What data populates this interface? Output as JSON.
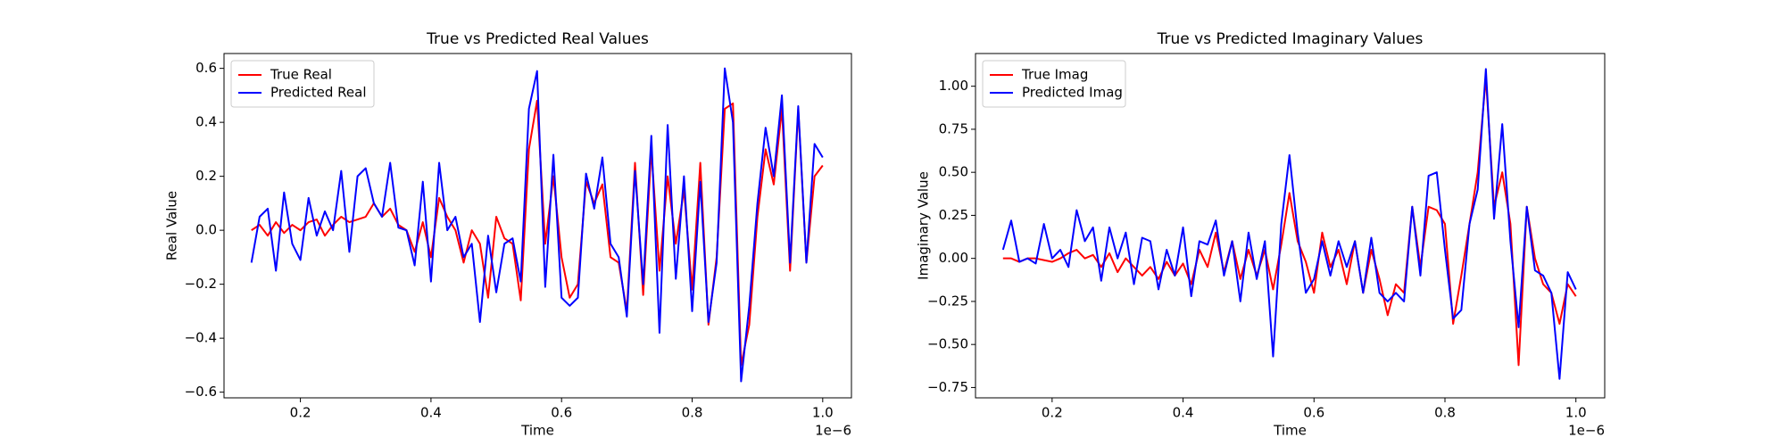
{
  "chart_data": [
    {
      "type": "line",
      "title": "True vs Predicted Real Values",
      "xlabel": "Time",
      "ylabel": "Real Value",
      "x_offset_label": "1e−6",
      "x": [
        0.125,
        0.1375,
        0.15,
        0.1625,
        0.175,
        0.1875,
        0.2,
        0.2125,
        0.225,
        0.2375,
        0.25,
        0.2625,
        0.275,
        0.2875,
        0.3,
        0.3125,
        0.325,
        0.3375,
        0.35,
        0.3625,
        0.375,
        0.3875,
        0.4,
        0.4125,
        0.425,
        0.4375,
        0.45,
        0.4625,
        0.475,
        0.4875,
        0.5,
        0.5125,
        0.525,
        0.5375,
        0.55,
        0.5625,
        0.575,
        0.5875,
        0.6,
        0.6125,
        0.625,
        0.6375,
        0.65,
        0.6625,
        0.675,
        0.6875,
        0.7,
        0.7125,
        0.725,
        0.7375,
        0.75,
        0.7625,
        0.775,
        0.7875,
        0.8,
        0.8125,
        0.825,
        0.8375,
        0.85,
        0.8625,
        0.875,
        0.8875,
        0.9,
        0.9125,
        0.925,
        0.9375,
        0.95,
        0.9625,
        0.975,
        0.9875,
        1.0
      ],
      "series": [
        {
          "name": "True Real",
          "color": "#ff0000",
          "values": [
            0.0,
            0.02,
            -0.02,
            0.03,
            -0.01,
            0.02,
            0.0,
            0.03,
            0.04,
            -0.02,
            0.02,
            0.05,
            0.03,
            0.04,
            0.05,
            0.1,
            0.05,
            0.08,
            0.02,
            0.0,
            -0.08,
            0.03,
            -0.1,
            0.12,
            0.05,
            0.0,
            -0.12,
            0.0,
            -0.05,
            -0.25,
            0.05,
            -0.03,
            -0.05,
            -0.26,
            0.3,
            0.48,
            -0.05,
            0.2,
            -0.1,
            -0.25,
            -0.2,
            0.18,
            0.1,
            0.17,
            -0.1,
            -0.12,
            -0.3,
            0.25,
            -0.24,
            0.3,
            -0.15,
            0.2,
            -0.05,
            0.15,
            -0.22,
            0.25,
            -0.35,
            -0.1,
            0.45,
            0.47,
            -0.5,
            -0.35,
            0.05,
            0.3,
            0.17,
            0.45,
            -0.15,
            0.45,
            -0.12,
            0.2,
            0.24
          ]
        },
        {
          "name": "Predicted Real",
          "color": "#0000ff",
          "values": [
            -0.12,
            0.05,
            0.08,
            -0.15,
            0.14,
            -0.05,
            -0.11,
            0.12,
            -0.02,
            0.07,
            0.0,
            0.22,
            -0.08,
            0.2,
            0.23,
            0.1,
            0.05,
            0.25,
            0.01,
            0.0,
            -0.13,
            0.18,
            -0.19,
            0.25,
            0.0,
            0.05,
            -0.1,
            -0.05,
            -0.34,
            -0.02,
            -0.23,
            -0.05,
            -0.03,
            -0.19,
            0.45,
            0.59,
            -0.21,
            0.28,
            -0.25,
            -0.28,
            -0.25,
            0.21,
            0.08,
            0.27,
            -0.05,
            -0.1,
            -0.32,
            0.22,
            -0.2,
            0.35,
            -0.38,
            0.39,
            -0.18,
            0.2,
            -0.3,
            0.18,
            -0.34,
            -0.12,
            0.6,
            0.4,
            -0.56,
            -0.28,
            0.1,
            0.38,
            0.2,
            0.5,
            -0.12,
            0.46,
            -0.12,
            0.32,
            0.27
          ]
        }
      ],
      "xlim": [
        0.083,
        1.044
      ],
      "ylim": [
        -0.621,
        0.655
      ],
      "xticks": [
        0.2,
        0.4,
        0.6,
        0.8,
        {
          "value": 1.0,
          "label": "1.0"
        }
      ],
      "yticks": [
        {
          "value": -0.6,
          "label": "−0.6"
        },
        {
          "value": -0.4,
          "label": "−0.4"
        },
        {
          "value": -0.2,
          "label": "−0.2"
        },
        {
          "value": 0.0,
          "label": "0.0"
        },
        0.2,
        0.4,
        0.6
      ],
      "legend": "upper left",
      "grid": false
    },
    {
      "type": "line",
      "title": "True vs Predicted Imaginary Values",
      "xlabel": "Time",
      "ylabel": "Imaginary Value",
      "x_offset_label": "1e−6",
      "x": [
        0.125,
        0.1375,
        0.15,
        0.1625,
        0.175,
        0.1875,
        0.2,
        0.2125,
        0.225,
        0.2375,
        0.25,
        0.2625,
        0.275,
        0.2875,
        0.3,
        0.3125,
        0.325,
        0.3375,
        0.35,
        0.3625,
        0.375,
        0.3875,
        0.4,
        0.4125,
        0.425,
        0.4375,
        0.45,
        0.4625,
        0.475,
        0.4875,
        0.5,
        0.5125,
        0.525,
        0.5375,
        0.55,
        0.5625,
        0.575,
        0.5875,
        0.6,
        0.6125,
        0.625,
        0.6375,
        0.65,
        0.6625,
        0.675,
        0.6875,
        0.7,
        0.7125,
        0.725,
        0.7375,
        0.75,
        0.7625,
        0.775,
        0.7875,
        0.8,
        0.8125,
        0.825,
        0.8375,
        0.85,
        0.8625,
        0.875,
        0.8875,
        0.9,
        0.9125,
        0.925,
        0.9375,
        0.95,
        0.9625,
        0.975,
        0.9875,
        1.0
      ],
      "series": [
        {
          "name": "True Imag",
          "color": "#ff0000",
          "values": [
            0.0,
            0.0,
            -0.02,
            0.0,
            0.0,
            -0.01,
            -0.02,
            0.0,
            0.03,
            0.05,
            0.0,
            0.02,
            -0.05,
            0.03,
            -0.08,
            0.0,
            -0.05,
            -0.1,
            -0.05,
            -0.12,
            -0.02,
            -0.1,
            -0.03,
            -0.15,
            0.05,
            -0.05,
            0.15,
            -0.08,
            0.1,
            -0.12,
            0.05,
            -0.1,
            0.05,
            -0.18,
            0.08,
            0.38,
            0.1,
            -0.02,
            -0.2,
            0.15,
            -0.05,
            0.05,
            -0.15,
            0.1,
            -0.2,
            0.05,
            -0.12,
            -0.33,
            -0.15,
            -0.2,
            0.3,
            -0.05,
            0.3,
            0.28,
            0.2,
            -0.38,
            -0.1,
            0.2,
            0.5,
            1.05,
            0.3,
            0.5,
            0.2,
            -0.62,
            0.3,
            0.0,
            -0.15,
            -0.2,
            -0.38,
            -0.15,
            -0.22
          ]
        },
        {
          "name": "Predicted Imag",
          "color": "#0000ff",
          "values": [
            0.05,
            0.22,
            -0.02,
            0.0,
            -0.03,
            0.2,
            0.0,
            0.05,
            -0.05,
            0.28,
            0.1,
            0.18,
            -0.13,
            0.18,
            0.0,
            0.15,
            -0.15,
            0.12,
            0.1,
            -0.18,
            0.05,
            -0.1,
            0.18,
            -0.22,
            0.1,
            0.08,
            0.22,
            -0.1,
            0.1,
            -0.25,
            0.15,
            -0.12,
            0.1,
            -0.57,
            0.2,
            0.6,
            0.15,
            -0.2,
            -0.12,
            0.1,
            -0.1,
            0.1,
            -0.05,
            0.1,
            -0.2,
            0.12,
            -0.2,
            -0.25,
            -0.2,
            -0.25,
            0.3,
            -0.1,
            0.48,
            0.5,
            0.05,
            -0.35,
            -0.3,
            0.2,
            0.4,
            1.1,
            0.23,
            0.78,
            0.1,
            -0.4,
            0.3,
            -0.07,
            -0.1,
            -0.2,
            -0.7,
            -0.08,
            -0.18
          ]
        }
      ],
      "xlim": [
        0.083,
        1.044
      ],
      "ylim": [
        -0.81,
        1.19
      ],
      "xticks": [
        0.2,
        0.4,
        0.6,
        0.8,
        {
          "value": 1.0,
          "label": "1.0"
        }
      ],
      "yticks": [
        {
          "value": -0.75,
          "label": "−0.75"
        },
        {
          "value": -0.5,
          "label": "−0.50"
        },
        {
          "value": -0.25,
          "label": "−0.25"
        },
        {
          "value": 0.0,
          "label": "0.00"
        },
        0.25,
        {
          "value": 0.5,
          "label": "0.50"
        },
        0.75,
        {
          "value": 1.0,
          "label": "1.00"
        }
      ],
      "legend": "upper left",
      "grid": false
    }
  ]
}
